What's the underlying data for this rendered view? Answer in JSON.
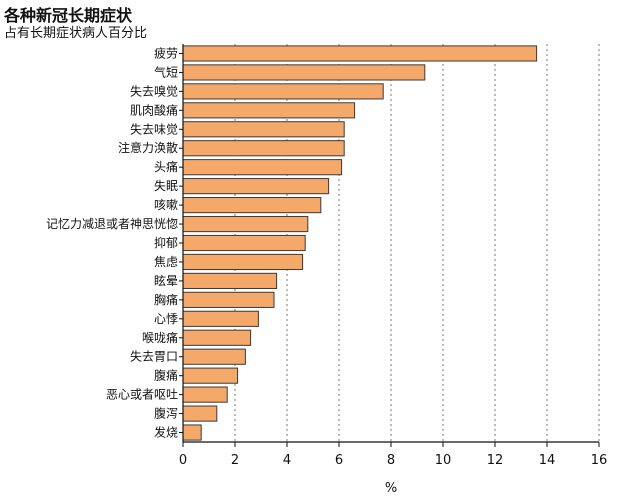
{
  "chart_data": {
    "type": "bar",
    "orientation": "horizontal",
    "title": "各种新冠长期症状",
    "subtitle": "占有长期症状病人百分比",
    "xlabel": "%",
    "ylabel": "",
    "xlim": [
      0,
      16
    ],
    "xticks": [
      0,
      2,
      4,
      6,
      8,
      10,
      12,
      14,
      16
    ],
    "grid": "vertical dotted",
    "bar_color": "#F4A86A",
    "bar_edge_color": "#3a3a3a",
    "categories": [
      "疲劳",
      "气短",
      "失去嗅觉",
      "肌肉酸痛",
      "失去味觉",
      "注意力涣散",
      "头痛",
      "失眠",
      "咳嗽",
      "记忆力减退或者神思恍惚",
      "抑郁",
      "焦虑",
      "眩晕",
      "胸痛",
      "心悸",
      "喉咙痛",
      "失去胃口",
      "腹痛",
      "恶心或者呕吐",
      "腹泻",
      "发烧"
    ],
    "values": [
      13.6,
      9.3,
      7.7,
      6.6,
      6.2,
      6.2,
      6.1,
      5.6,
      5.3,
      4.8,
      4.7,
      4.6,
      3.6,
      3.5,
      2.9,
      2.6,
      2.4,
      2.1,
      1.7,
      1.3,
      0.7
    ]
  }
}
